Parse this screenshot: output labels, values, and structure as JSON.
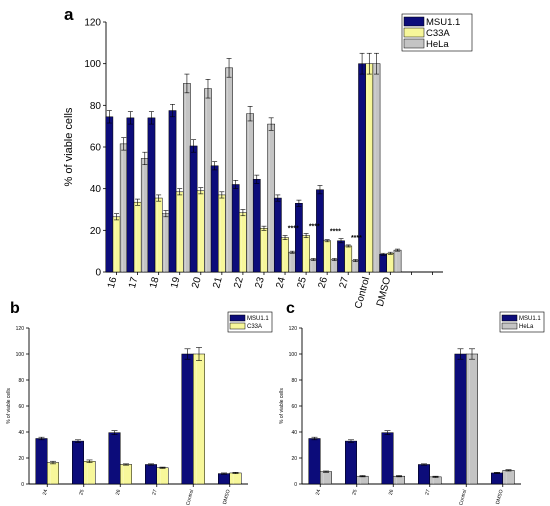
{
  "colors": {
    "MSU1.1": "#0c0c7a",
    "C33A": "#f7f79a",
    "HeLa": "#c4c4c4"
  },
  "chart_data": [
    {
      "panel": "a",
      "type": "bar",
      "ylabel": "% of viable cells",
      "ylim": [
        0,
        120
      ],
      "yticks": [
        0,
        20,
        40,
        60,
        80,
        100,
        120
      ],
      "legend_position": "top-right",
      "categories": [
        "16",
        "17",
        "18",
        "19",
        "20",
        "21",
        "22",
        "23",
        "24",
        "25",
        "26",
        "27",
        "Control",
        "DMSO"
      ],
      "series": [
        {
          "name": "MSU1.1",
          "values": [
            74.5,
            74,
            74,
            77.5,
            60.5,
            51,
            42,
            44.5,
            35.5,
            33,
            39.5,
            15,
            100,
            8.5
          ],
          "errors": [
            3,
            3,
            3,
            3,
            3,
            2,
            2,
            2,
            1.5,
            1.5,
            2,
            1,
            5,
            0.5
          ]
        },
        {
          "name": "C33A",
          "values": [
            26.5,
            33.5,
            35.5,
            38.5,
            39,
            37,
            28.5,
            21,
            16.5,
            17.5,
            15,
            12.5,
            100,
            9
          ],
          "errors": [
            1.5,
            1.5,
            1.5,
            1.5,
            1.5,
            1.5,
            1.5,
            1,
            1,
            1,
            0.5,
            0.5,
            5,
            0.5
          ]
        },
        {
          "name": "HeLa",
          "values": [
            61.5,
            54.5,
            28,
            90.5,
            88,
            98,
            76,
            71,
            9.5,
            6,
            6,
            5.5,
            100,
            10.5
          ],
          "errors": [
            3,
            3,
            1.5,
            4.5,
            4.5,
            4.5,
            3.5,
            3,
            0.5,
            0.5,
            0.5,
            0.5,
            5,
            0.5
          ]
        }
      ],
      "annotations": [
        {
          "category": "24",
          "text": "****"
        },
        {
          "category": "25",
          "text": "****"
        },
        {
          "category": "26",
          "text": "****"
        },
        {
          "category": "27",
          "text": "****"
        }
      ]
    },
    {
      "panel": "b",
      "type": "bar",
      "ylabel": "% of viable cells",
      "ylim": [
        0,
        120
      ],
      "yticks": [
        0,
        20,
        40,
        60,
        80,
        100,
        120
      ],
      "legend_position": "top-right",
      "categories": [
        "24",
        "25",
        "26",
        "27",
        "Control",
        "DMSO"
      ],
      "series": [
        {
          "name": "MSU1.1",
          "values": [
            35,
            33,
            39.5,
            15,
            100,
            8
          ],
          "errors": [
            1,
            1,
            1.5,
            0.5,
            4,
            0.5
          ]
        },
        {
          "name": "C33A",
          "values": [
            16.5,
            17.5,
            15,
            12.5,
            100,
            8.5
          ],
          "errors": [
            1,
            1,
            0.5,
            0.5,
            5,
            0.5
          ]
        }
      ]
    },
    {
      "panel": "c",
      "type": "bar",
      "ylabel": "% of viable cells",
      "ylim": [
        0,
        120
      ],
      "yticks": [
        0,
        20,
        40,
        60,
        80,
        100,
        120
      ],
      "legend_position": "top-right",
      "categories": [
        "24",
        "25",
        "26",
        "27",
        "Control",
        "DMSO"
      ],
      "series": [
        {
          "name": "MSU1.1",
          "values": [
            35,
            33,
            39.5,
            15,
            100,
            8.5
          ],
          "errors": [
            1,
            1,
            1.5,
            0.5,
            4,
            0.5
          ]
        },
        {
          "name": "HeLa",
          "values": [
            9.5,
            6,
            6,
            5.5,
            100,
            10.5
          ],
          "errors": [
            0.5,
            0.5,
            0.5,
            0.5,
            4,
            0.5
          ]
        }
      ]
    }
  ]
}
